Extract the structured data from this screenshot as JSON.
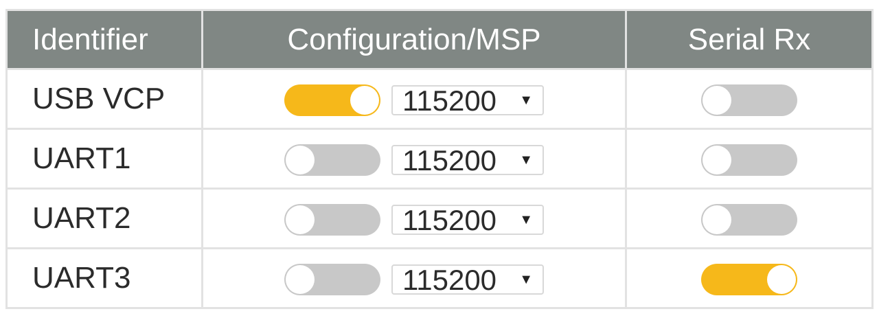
{
  "headers": {
    "identifier": "Identifier",
    "config": "Configuration/MSP",
    "serial_rx": "Serial Rx"
  },
  "colors": {
    "header_bg": "#808784",
    "toggle_on": "#f6b81a",
    "toggle_off": "#c8c8c8"
  },
  "rows": [
    {
      "identifier": "USB VCP",
      "msp_enabled": true,
      "baud": "115200",
      "serial_rx": false
    },
    {
      "identifier": "UART1",
      "msp_enabled": false,
      "baud": "115200",
      "serial_rx": false
    },
    {
      "identifier": "UART2",
      "msp_enabled": false,
      "baud": "115200",
      "serial_rx": false
    },
    {
      "identifier": "UART3",
      "msp_enabled": false,
      "baud": "115200",
      "serial_rx": true
    }
  ],
  "dropdown_icon": "triangle-down-icon"
}
